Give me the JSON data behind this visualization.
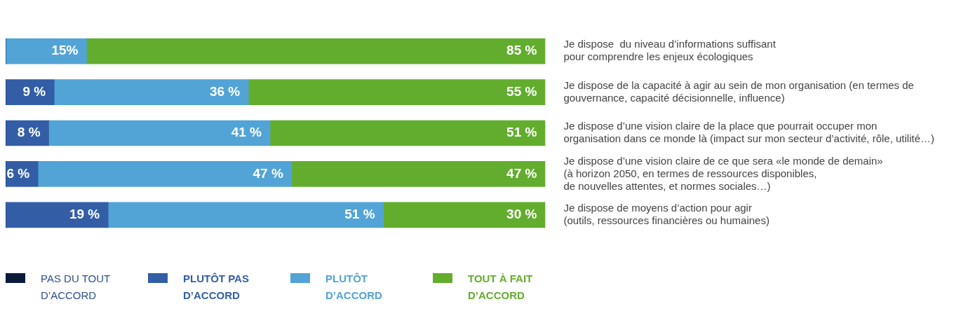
{
  "chart_data": {
    "type": "bar",
    "orientation": "horizontal",
    "stacked": true,
    "legend": "bottom",
    "tick_labels": "y",
    "xlim": [
      0,
      100
    ],
    "categories": [
      "Je dispose  du niveau d’informations suffisant\npour comprendre les enjeux écologiques",
      "Je dispose de la capacité à agir au sein de mon organisation (en termes de\ngouvernance, capacité décisionnelle, influence)",
      "Je dispose d’une vision claire de la place que pourrait occuper mon\norganisation dans ce monde là (impact sur mon secteur d’activité, rôle, utilité…)",
      "Je dispose d’une vision claire de ce que sera «le monde de demain»\n(à horizon 2050, en termes de ressources disponibles,\nde nouvelles attentes, et normes sociales…)",
      "Je dispose de moyens d’action pour agir\n(outils, ressources financières ou humaines)"
    ],
    "series": [
      {
        "name": "PAS DU TOUT D’ACCORD",
        "color": "#0c1a3a",
        "values": [
          0,
          0,
          0,
          0,
          0
        ]
      },
      {
        "name": "PLUTÔT PAS D’ACCORD",
        "color": "#335ea6",
        "values": [
          0,
          9,
          8,
          6,
          19
        ],
        "value_labels": [
          null,
          "9 %",
          "8 %",
          "6 %",
          "19 %"
        ]
      },
      {
        "name": "PLUTÔT D’ACCORD",
        "color": "#52a3d6",
        "values": [
          15,
          36,
          41,
          47,
          51
        ],
        "value_labels": [
          "15%",
          "36 %",
          "41 %",
          "47 %",
          "51 %"
        ]
      },
      {
        "name": "TOUT À FAIT D’ACCORD",
        "color": "#63ad2e",
        "values": [
          85,
          55,
          51,
          47,
          30
        ],
        "value_labels": [
          "85 %",
          "55 %",
          "51 %",
          "47 %",
          "30 %"
        ]
      }
    ]
  }
}
